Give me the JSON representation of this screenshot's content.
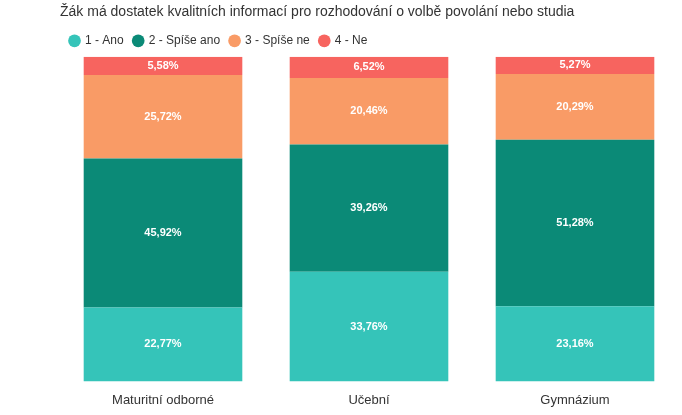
{
  "chart_data": {
    "type": "bar",
    "title": "Žák má dostatek kvalitních informací pro rozhodování o volbě povolání nebo studia",
    "categories": [
      "Maturitní odborné",
      "Učební",
      "Gymnázium"
    ],
    "series": [
      {
        "name": "1 - Ano",
        "color": "#35c4b9",
        "values": [
          22.77,
          33.76,
          23.16
        ],
        "value_labels": [
          "22,77%",
          "33,76%",
          "23,16%"
        ]
      },
      {
        "name": "2 - Spíše ano",
        "color": "#0b8a77",
        "values": [
          45.92,
          39.26,
          51.28
        ],
        "value_labels": [
          "45,92%",
          "39,26%",
          "51,28%"
        ]
      },
      {
        "name": "3 - Spíše ne",
        "color": "#f99b66",
        "values": [
          25.72,
          20.46,
          20.29
        ],
        "value_labels": [
          "25,72%",
          "20,46%",
          "20,29%"
        ]
      },
      {
        "name": "4 - Ne",
        "color": "#f7645f",
        "values": [
          5.58,
          6.52,
          5.27
        ],
        "value_labels": [
          "5,58%",
          "6,52%",
          "5,27%"
        ]
      }
    ],
    "ylim": [
      0,
      100
    ],
    "stacked": true,
    "data_labels": true,
    "grid": false,
    "legend": "top-left",
    "tick_labels": "x"
  }
}
